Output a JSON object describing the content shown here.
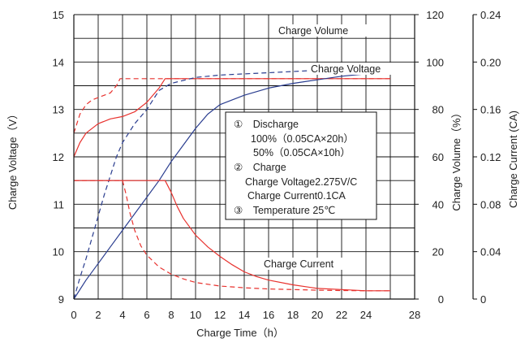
{
  "colors": {
    "background": "#ffffff",
    "grid": "#111111",
    "red": "#e8322e",
    "blue": "#2a3d8f",
    "text": "#222222"
  },
  "chart_data": {
    "type": "line",
    "xlabel": "Charge Time（h）",
    "xlim": [
      0,
      28
    ],
    "x_ticks": [
      "0",
      "2",
      "4",
      "6",
      "8",
      "10",
      "12",
      "14",
      "16",
      "18",
      "20",
      "22",
      "24",
      "28"
    ],
    "y_axes": [
      {
        "id": "voltage",
        "label": "Charge Voltage（V）",
        "range": [
          9,
          15
        ],
        "ticks": [
          "9",
          "10",
          "11",
          "12",
          "13",
          "14",
          "15"
        ]
      },
      {
        "id": "volume",
        "label": "Charge Volume（%）",
        "range": [
          0,
          120
        ],
        "ticks": [
          "0",
          "20",
          "40",
          "60",
          "80",
          "100",
          "120"
        ]
      },
      {
        "id": "current",
        "label": "Charge Current (CA)",
        "range": [
          0,
          0.24
        ],
        "ticks": [
          "0",
          "0.04",
          "0.08",
          "0.12",
          "0.16",
          "0.20",
          "0.24"
        ]
      }
    ],
    "grid": true,
    "series_labels": {
      "charge_volume": "Charge Volume",
      "charge_voltage": "Charge Voltage",
      "charge_current": "Charge Current"
    },
    "series": [
      {
        "group": "voltage",
        "style": "solid",
        "color": "#e8322e",
        "axis": "voltage",
        "x": [
          0,
          0.5,
          1,
          2,
          3,
          4,
          5,
          6,
          7,
          7.5,
          26
        ],
        "y": [
          12.0,
          12.3,
          12.5,
          12.7,
          12.8,
          12.85,
          12.95,
          13.15,
          13.45,
          13.65,
          13.65
        ]
      },
      {
        "group": "voltage",
        "style": "dashed",
        "color": "#e8322e",
        "axis": "voltage",
        "x": [
          0,
          0.5,
          1,
          1.5,
          2,
          2.5,
          3,
          3.5,
          3.8,
          26
        ],
        "y": [
          12.5,
          12.9,
          13.1,
          13.2,
          13.25,
          13.3,
          13.35,
          13.5,
          13.65,
          13.65
        ]
      },
      {
        "group": "volume",
        "style": "solid",
        "color": "#2a3d8f",
        "axis": "volume",
        "x": [
          0,
          1,
          2,
          3,
          4,
          5,
          6,
          7,
          8,
          9,
          10,
          11,
          12,
          14,
          16,
          18,
          20,
          22,
          24,
          26
        ],
        "y": [
          0,
          8,
          15,
          22,
          29,
          36,
          43,
          50,
          58,
          65,
          72,
          78,
          82,
          86,
          89,
          91,
          92.5,
          94,
          95,
          96
        ]
      },
      {
        "group": "volume",
        "style": "dashed",
        "color": "#2a3d8f",
        "axis": "volume",
        "x": [
          0,
          0.5,
          1,
          1.5,
          2,
          2.5,
          3,
          3.5,
          4,
          5,
          6,
          7,
          8,
          10,
          12,
          14,
          16,
          18,
          20,
          22,
          24,
          26
        ],
        "y": [
          0,
          9,
          17,
          26,
          35,
          44,
          52,
          60,
          66,
          74,
          80,
          88,
          91,
          93.5,
          94.5,
          95,
          95.5,
          96,
          96.5,
          97,
          97.5,
          98
        ]
      },
      {
        "group": "current",
        "style": "solid",
        "color": "#e8322e",
        "axis": "current",
        "x": [
          0,
          7.5,
          8,
          8.5,
          9,
          10,
          11,
          12,
          13,
          14,
          15,
          16,
          18,
          20,
          22,
          24,
          26
        ],
        "y": [
          0.1,
          0.1,
          0.09,
          0.078,
          0.068,
          0.054,
          0.044,
          0.036,
          0.029,
          0.023,
          0.019,
          0.016,
          0.012,
          0.009,
          0.008,
          0.007,
          0.007
        ]
      },
      {
        "group": "current",
        "style": "dashed",
        "color": "#e8322e",
        "axis": "current",
        "x": [
          0,
          4,
          4.3,
          4.6,
          5,
          5.5,
          6,
          7,
          8,
          9,
          10,
          12,
          14,
          16,
          18,
          20,
          22,
          24,
          26
        ],
        "y": [
          0.1,
          0.1,
          0.088,
          0.073,
          0.058,
          0.045,
          0.037,
          0.027,
          0.021,
          0.017,
          0.014,
          0.011,
          0.0095,
          0.0085,
          0.008,
          0.0075,
          0.0072,
          0.007,
          0.007
        ]
      }
    ],
    "annotation_box": [
      "①　Discharge",
      "100%（0.05CA×20h）",
      "50%（0.05CA×10h）",
      "②　Charge",
      "Charge Voltage2.275V/C",
      "Charge Current0.1CA",
      "③　Temperature 25℃"
    ]
  }
}
